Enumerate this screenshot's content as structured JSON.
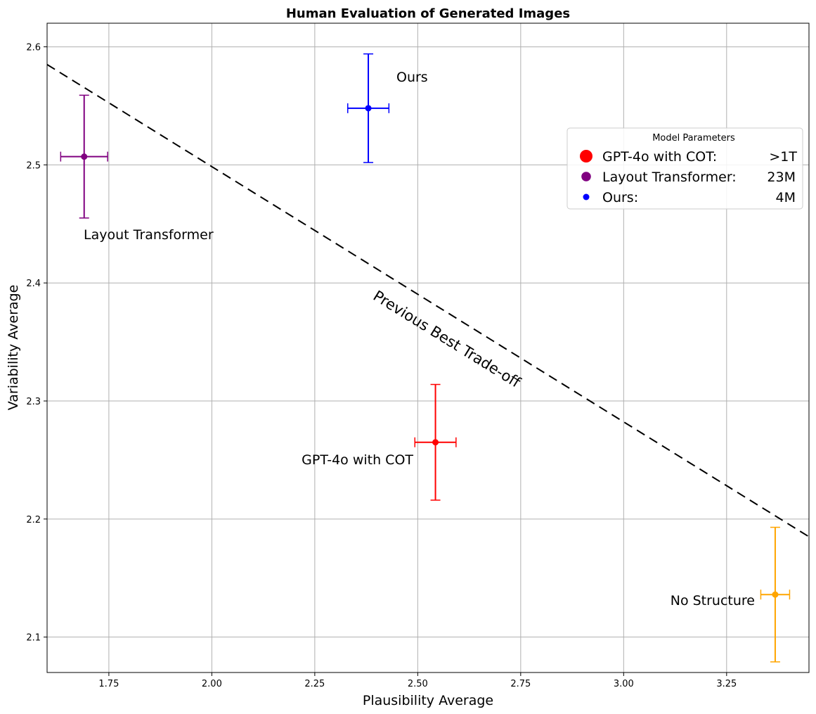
{
  "chart_data": {
    "type": "scatter",
    "title": "Human Evaluation of Generated Images",
    "xlabel": "Plausibility Average",
    "ylabel": "Variability Average",
    "xlim": [
      1.6,
      3.45
    ],
    "ylim": [
      2.07,
      2.62
    ],
    "xticks": [
      1.75,
      2.0,
      2.25,
      2.5,
      2.75,
      3.0,
      3.25
    ],
    "xtick_labels": [
      "1.75",
      "2.00",
      "2.25",
      "2.50",
      "2.75",
      "3.00",
      "3.25"
    ],
    "yticks": [
      2.1,
      2.2,
      2.3,
      2.4,
      2.5,
      2.6
    ],
    "ytick_labels": [
      "2.1",
      "2.2",
      "2.3",
      "2.4",
      "2.5",
      "2.6"
    ],
    "grid": true,
    "points": [
      {
        "label": "Ours",
        "x": 2.38,
        "y": 2.548,
        "xerr": 0.05,
        "yerr": 0.046,
        "color": "#0000ff"
      },
      {
        "label": "Layout Transformer",
        "x": 1.69,
        "y": 2.507,
        "xerr": 0.057,
        "yerr": 0.052,
        "color": "#800080"
      },
      {
        "label": "GPT-4o with COT",
        "x": 2.543,
        "y": 2.265,
        "xerr": 0.05,
        "yerr": 0.049,
        "color": "#ff0000"
      },
      {
        "label": "No Structure",
        "x": 3.368,
        "y": 2.136,
        "xerr": 0.035,
        "yerr": 0.057,
        "color": "#ffa500"
      }
    ],
    "trend_line": {
      "label": "Previous Best Trade-off",
      "x": [
        1.6,
        3.45
      ],
      "y": [
        2.585,
        2.185
      ],
      "style": "dashed",
      "color": "#000000"
    },
    "legend": {
      "title": "Model Parameters",
      "placement": "upper-right",
      "entries": [
        {
          "name": "GPT-4o with COT:",
          "value": ">1T",
          "color": "#ff0000",
          "marker_scale": 1.0
        },
        {
          "name": "Layout Transformer:",
          "value": "23M",
          "color": "#800080",
          "marker_scale": 0.75
        },
        {
          "name": "Ours:",
          "value": "4M",
          "color": "#0000ff",
          "marker_scale": 0.5
        }
      ]
    }
  }
}
